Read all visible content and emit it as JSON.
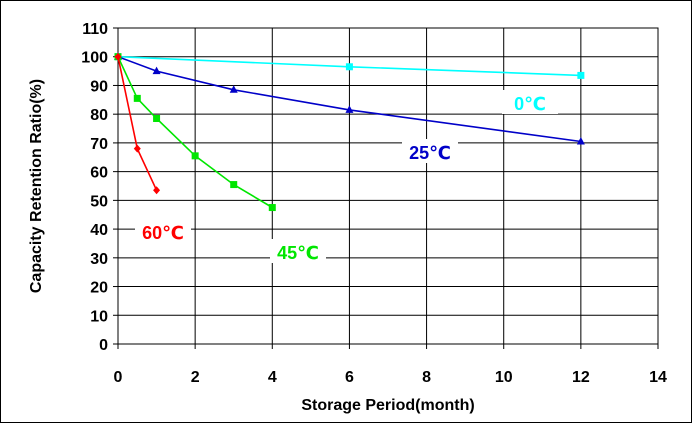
{
  "chart_data": {
    "type": "line",
    "title": "",
    "xlabel": "Storage Period(month)",
    "ylabel": "Capacity Retention Ratio(%)",
    "xlim": [
      0,
      14
    ],
    "ylim": [
      0,
      110
    ],
    "xticks": [
      0,
      2,
      4,
      6,
      8,
      10,
      12,
      14
    ],
    "yticks": [
      0,
      10,
      20,
      30,
      40,
      50,
      60,
      70,
      80,
      90,
      100,
      110
    ],
    "grid": true,
    "legend": "none",
    "series": [
      {
        "name": "0℃",
        "color": "#00ffff",
        "marker": "square",
        "x": [
          0,
          6,
          12
        ],
        "y": [
          100,
          96.5,
          93.5
        ]
      },
      {
        "name": "25℃",
        "color": "#0000c8",
        "marker": "triangle",
        "x": [
          0,
          1,
          3,
          6,
          12
        ],
        "y": [
          100,
          95,
          88.5,
          81.5,
          70.5
        ]
      },
      {
        "name": "45℃",
        "color": "#00e600",
        "marker": "square",
        "x": [
          0,
          0.5,
          1,
          2,
          3,
          4
        ],
        "y": [
          100,
          85.5,
          78.5,
          65.5,
          55.5,
          47.5
        ]
      },
      {
        "name": "60℃",
        "color": "#ff0000",
        "marker": "diamond",
        "x": [
          0,
          0.5,
          1
        ],
        "y": [
          100,
          68,
          53.5
        ]
      }
    ]
  }
}
